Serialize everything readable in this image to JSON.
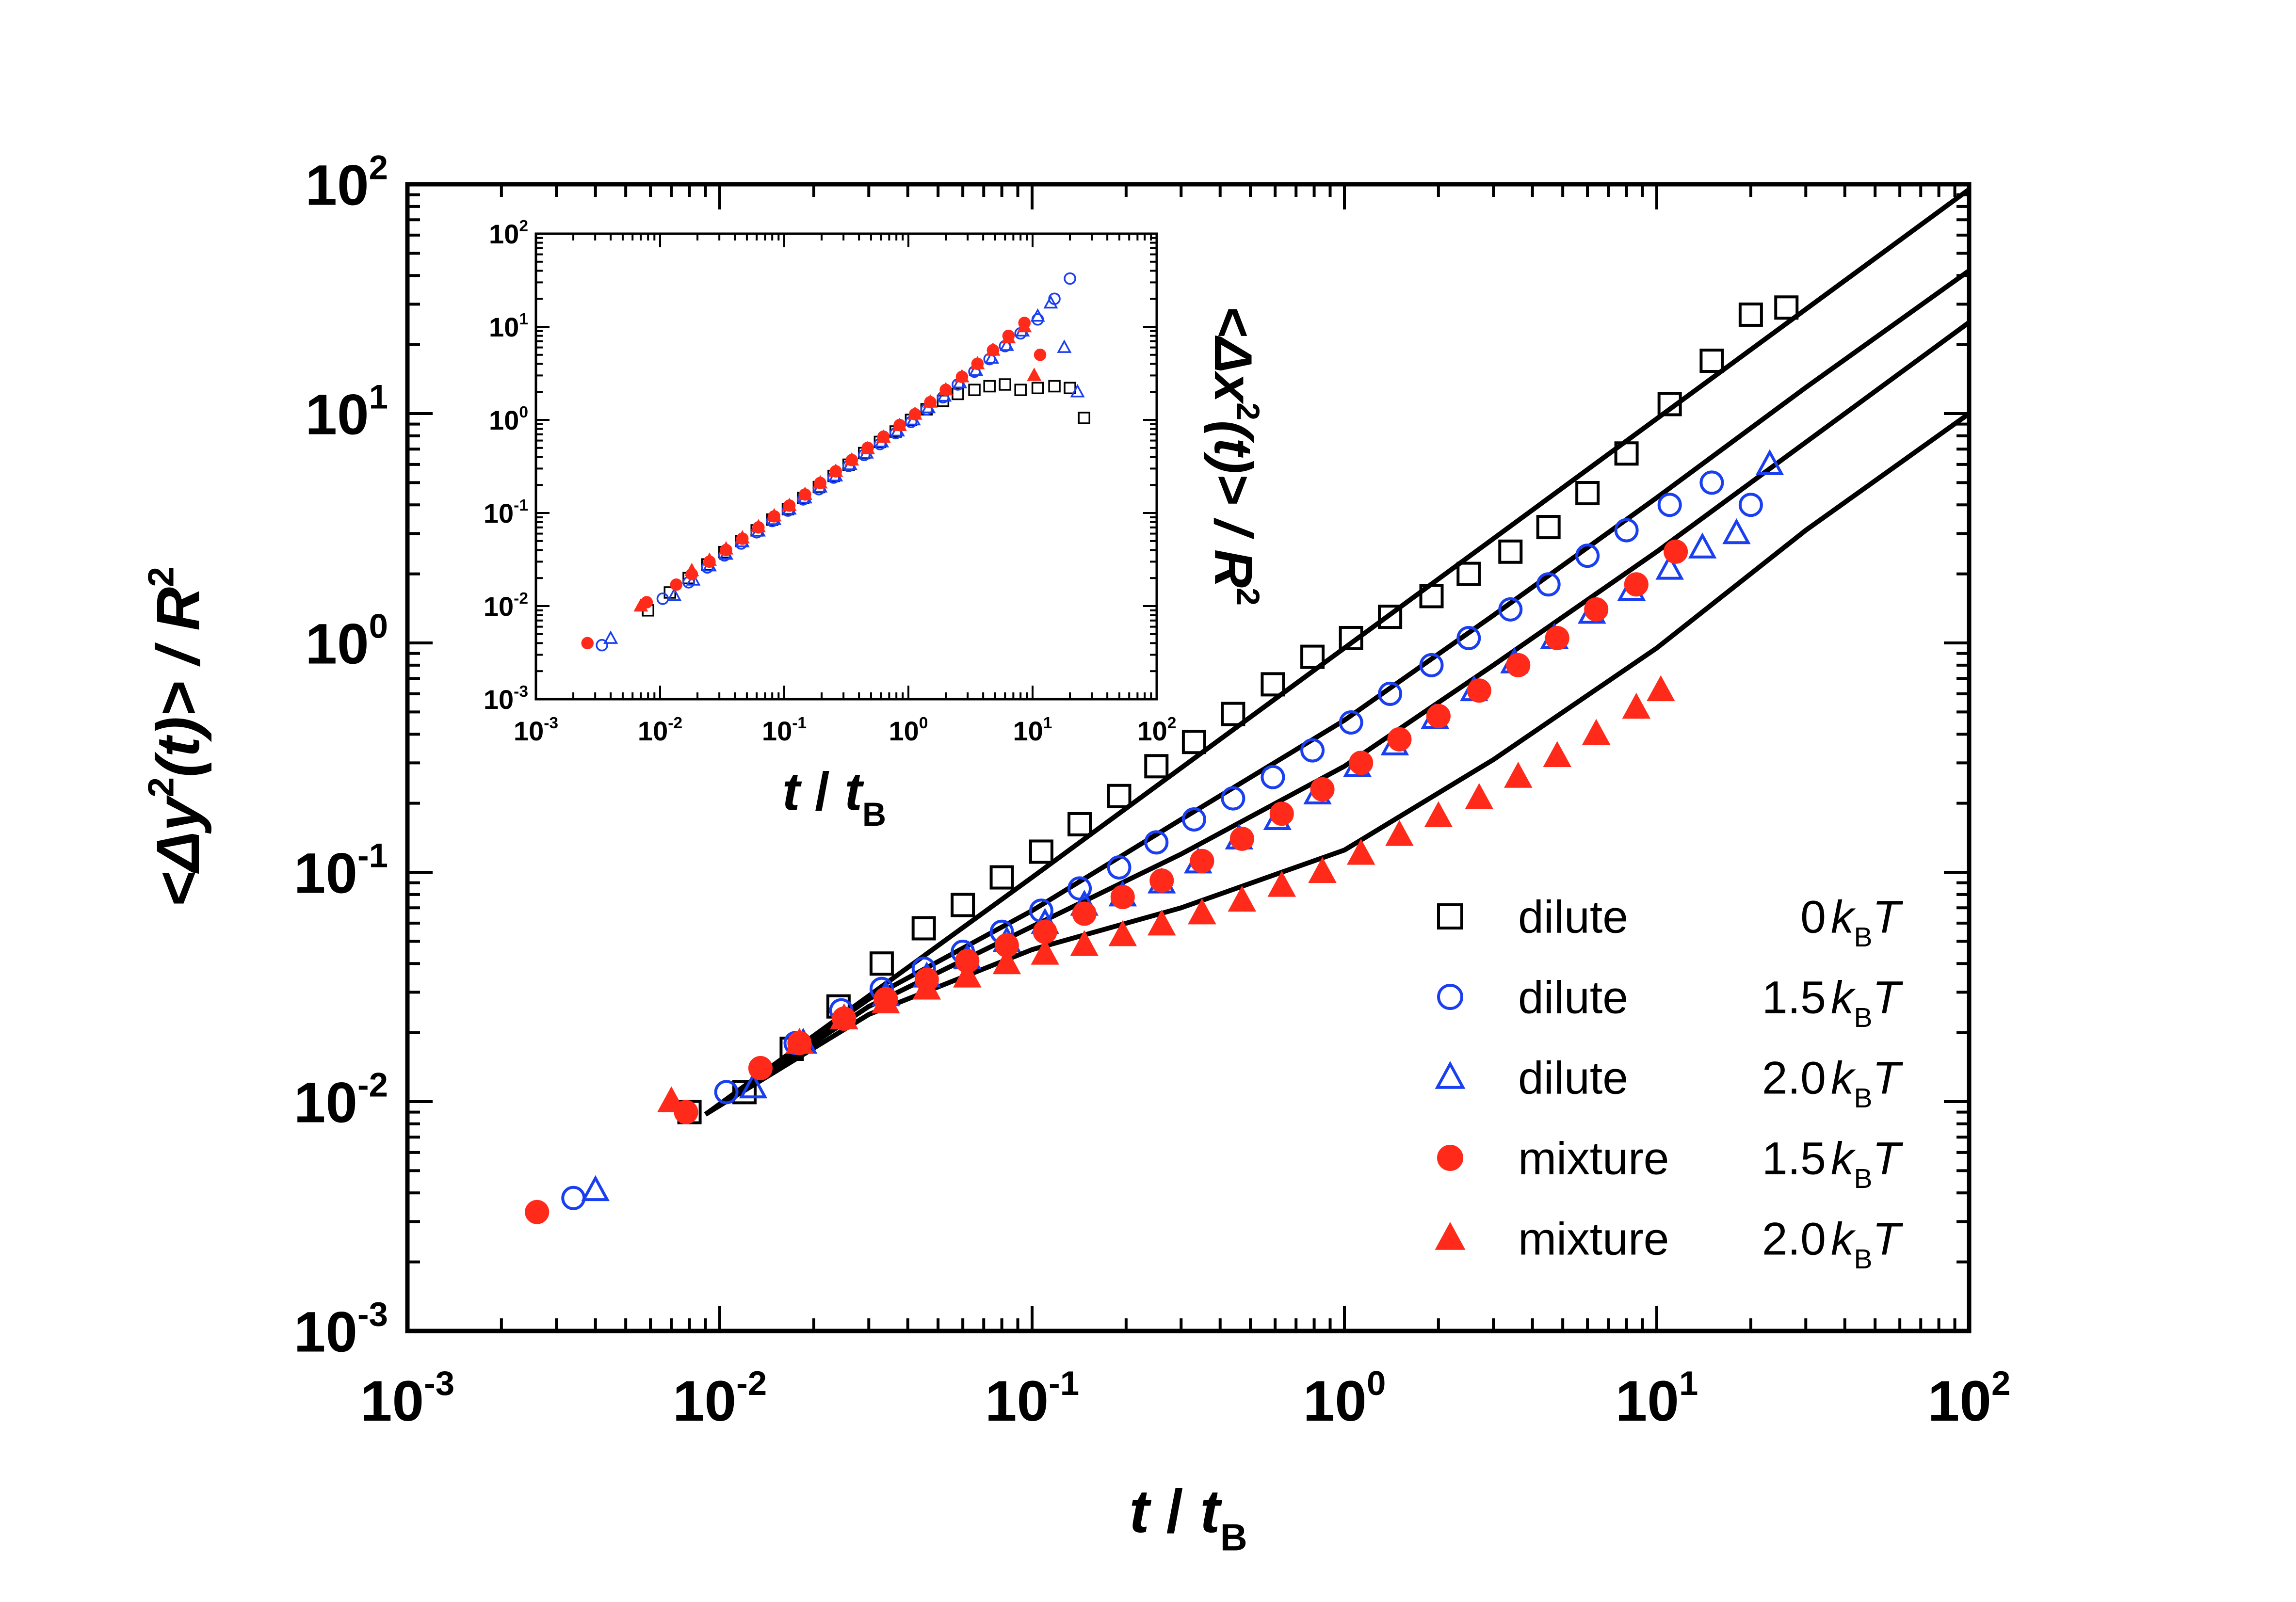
{
  "colors": {
    "black": "#000000",
    "blue": "#1a3ff0",
    "red": "#ff2a1a"
  },
  "chart_data": [
    {
      "type": "scatter",
      "role": "main",
      "xscale": "log",
      "yscale": "log",
      "xlim": [
        0.001,
        100
      ],
      "ylim": [
        0.001,
        100
      ],
      "xlabel": {
        "t": "t",
        "sep": " / ",
        "tB": "t",
        "sub": "B"
      },
      "ylabel": {
        "open": "<Δy",
        "sup": "2",
        "mid": "(t)> / R",
        "sup2": "2"
      },
      "xticks": [
        {
          "v": 0.001,
          "base": "10",
          "exp": "-3"
        },
        {
          "v": 0.01,
          "base": "10",
          "exp": "-2"
        },
        {
          "v": 0.1,
          "base": "10",
          "exp": "-1"
        },
        {
          "v": 1,
          "base": "10",
          "exp": "0"
        },
        {
          "v": 10,
          "base": "10",
          "exp": "1"
        },
        {
          "v": 100,
          "base": "10",
          "exp": "2"
        }
      ],
      "yticks": [
        {
          "v": 0.001,
          "base": "10",
          "exp": "-3"
        },
        {
          "v": 0.01,
          "base": "10",
          "exp": "-2"
        },
        {
          "v": 0.1,
          "base": "10",
          "exp": "-1"
        },
        {
          "v": 1,
          "base": "10",
          "exp": "0"
        },
        {
          "v": 10,
          "base": "10",
          "exp": "1"
        },
        {
          "v": 100,
          "base": "10",
          "exp": "2"
        }
      ],
      "legend_position": "bottom-right",
      "series": [
        {
          "name": "dilute",
          "energy": "0",
          "unit_k": "k",
          "unit_sub": "B",
          "unit_T": "T",
          "marker": "square",
          "filled": false,
          "color": "black",
          "x": [
            0.008,
            0.012,
            0.017,
            0.024,
            0.033,
            0.045,
            0.06,
            0.08,
            0.107,
            0.142,
            0.19,
            0.25,
            0.33,
            0.44,
            0.59,
            0.79,
            1.05,
            1.4,
            1.9,
            2.5,
            3.4,
            4.5,
            6.0,
            8.0,
            11.0,
            15.0,
            20.0,
            26.0
          ],
          "y": [
            0.009,
            0.011,
            0.017,
            0.026,
            0.04,
            0.057,
            0.072,
            0.095,
            0.123,
            0.162,
            0.215,
            0.29,
            0.37,
            0.49,
            0.66,
            0.87,
            1.05,
            1.3,
            1.6,
            2.0,
            2.5,
            3.2,
            4.5,
            6.7,
            11.0,
            17.0,
            27.0,
            29.0
          ]
        },
        {
          "name": "dilute",
          "energy": "1.5",
          "unit_k": "k",
          "unit_sub": "B",
          "unit_T": "T",
          "marker": "circle",
          "filled": false,
          "color": "blue",
          "x": [
            0.0034,
            0.0105,
            0.0175,
            0.0245,
            0.033,
            0.045,
            0.06,
            0.08,
            0.107,
            0.142,
            0.19,
            0.25,
            0.33,
            0.44,
            0.59,
            0.79,
            1.05,
            1.4,
            1.9,
            2.5,
            3.4,
            4.5,
            6.0,
            8.0,
            11.0,
            15.0,
            20.0
          ],
          "y": [
            0.0038,
            0.011,
            0.018,
            0.025,
            0.031,
            0.038,
            0.045,
            0.055,
            0.068,
            0.085,
            0.105,
            0.135,
            0.17,
            0.21,
            0.26,
            0.34,
            0.45,
            0.6,
            0.8,
            1.05,
            1.4,
            1.8,
            2.4,
            3.1,
            4.0,
            5.0,
            4.0
          ]
        },
        {
          "name": "dilute",
          "energy": "2.0",
          "unit_k": "k",
          "unit_sub": "B",
          "unit_T": "T",
          "marker": "triangle",
          "filled": false,
          "color": "blue",
          "x": [
            0.004,
            0.0128,
            0.0185,
            0.025,
            0.034,
            0.046,
            0.062,
            0.083,
            0.11,
            0.147,
            0.195,
            0.26,
            0.34,
            0.46,
            0.61,
            0.82,
            1.1,
            1.45,
            1.95,
            2.6,
            3.5,
            4.7,
            6.2,
            8.3,
            11.0,
            14.0,
            18.0,
            23.0
          ],
          "y": [
            0.0041,
            0.0115,
            0.018,
            0.023,
            0.029,
            0.035,
            0.042,
            0.05,
            0.06,
            0.072,
            0.079,
            0.09,
            0.11,
            0.14,
            0.17,
            0.22,
            0.29,
            0.36,
            0.47,
            0.62,
            0.82,
            1.05,
            1.35,
            1.7,
            2.1,
            2.6,
            3.0,
            6.0
          ]
        },
        {
          "name": "mixture",
          "energy": "1.5",
          "unit_k": "k",
          "unit_sub": "B",
          "unit_T": "T",
          "marker": "circle",
          "filled": true,
          "color": "red",
          "x": [
            0.0026,
            0.0078,
            0.0135,
            0.018,
            0.025,
            0.034,
            0.046,
            0.062,
            0.083,
            0.11,
            0.147,
            0.195,
            0.26,
            0.35,
            0.47,
            0.63,
            0.85,
            1.13,
            1.5,
            2.0,
            2.7,
            3.6,
            4.8,
            6.4,
            8.6,
            11.5
          ],
          "y": [
            0.0033,
            0.009,
            0.014,
            0.018,
            0.023,
            0.028,
            0.034,
            0.041,
            0.048,
            0.055,
            0.066,
            0.078,
            0.092,
            0.112,
            0.14,
            0.18,
            0.23,
            0.3,
            0.38,
            0.48,
            0.62,
            0.8,
            1.05,
            1.4,
            1.8,
            2.5
          ]
        },
        {
          "name": "mixture",
          "energy": "2.0",
          "unit_k": "k",
          "unit_sub": "B",
          "unit_T": "T",
          "marker": "triangle",
          "filled": true,
          "color": "red",
          "x": [
            0.007,
            0.018,
            0.025,
            0.034,
            0.046,
            0.062,
            0.083,
            0.11,
            0.147,
            0.195,
            0.26,
            0.35,
            0.47,
            0.63,
            0.85,
            1.13,
            1.5,
            2.0,
            2.7,
            3.6,
            4.8,
            6.4,
            8.6,
            10.3
          ],
          "y": [
            0.01,
            0.018,
            0.023,
            0.027,
            0.031,
            0.035,
            0.04,
            0.044,
            0.048,
            0.053,
            0.059,
            0.066,
            0.075,
            0.087,
            0.1,
            0.12,
            0.145,
            0.175,
            0.21,
            0.26,
            0.32,
            0.4,
            0.52,
            0.62
          ]
        }
      ],
      "fits": [
        {
          "name": "fit-dilute-0",
          "x": [
            0.009,
            0.1,
            1,
            10,
            100
          ],
          "y": [
            0.0088,
            0.095,
            0.95,
            9.5,
            95
          ]
        },
        {
          "name": "fit-dilute-1.5",
          "x": [
            0.009,
            0.03,
            0.1,
            0.3,
            1,
            3,
            10,
            30,
            100
          ],
          "y": [
            0.0088,
            0.028,
            0.068,
            0.17,
            0.46,
            1.32,
            4.3,
            13,
            42
          ]
        },
        {
          "name": "fit-dilute-2.0",
          "x": [
            0.009,
            0.03,
            0.1,
            0.3,
            1,
            3,
            10,
            30,
            100
          ],
          "y": [
            0.0088,
            0.026,
            0.058,
            0.12,
            0.29,
            0.8,
            2.5,
            7.5,
            25
          ]
        },
        {
          "name": "fit-mixture-2.0",
          "x": [
            0.009,
            0.03,
            0.1,
            0.3,
            1,
            3,
            10,
            30,
            100
          ],
          "y": [
            0.0088,
            0.024,
            0.046,
            0.07,
            0.125,
            0.31,
            0.95,
            3.1,
            10
          ]
        }
      ]
    },
    {
      "type": "scatter",
      "role": "inset",
      "xscale": "log",
      "yscale": "log",
      "xlim": [
        0.001,
        100
      ],
      "ylim": [
        0.001,
        100
      ],
      "xlabel": {
        "t": "t",
        "sep": " / ",
        "tB": "t",
        "sub": "B"
      },
      "ylabel": {
        "open": "<Δx",
        "sup": "2",
        "mid": "(t)> / R",
        "sup2": "2"
      },
      "xticks": [
        {
          "v": 0.001,
          "base": "10",
          "exp": "-3"
        },
        {
          "v": 0.01,
          "base": "10",
          "exp": "-2"
        },
        {
          "v": 0.1,
          "base": "10",
          "exp": "-1"
        },
        {
          "v": 1,
          "base": "10",
          "exp": "0"
        },
        {
          "v": 10,
          "base": "10",
          "exp": "1"
        },
        {
          "v": 100,
          "base": "10",
          "exp": "2"
        }
      ],
      "yticks": [
        {
          "v": 0.001,
          "base": "10",
          "exp": "-3"
        },
        {
          "v": 0.01,
          "base": "10",
          "exp": "-2"
        },
        {
          "v": 0.1,
          "base": "10",
          "exp": "-1"
        },
        {
          "v": 1,
          "base": "10",
          "exp": "0"
        },
        {
          "v": 10,
          "base": "10",
          "exp": "1"
        },
        {
          "v": 100,
          "base": "10",
          "exp": "2"
        }
      ],
      "series": [
        {
          "name": "dilute 0 kBT",
          "marker": "square",
          "filled": false,
          "color": "black",
          "x": [
            0.008,
            0.012,
            0.017,
            0.024,
            0.033,
            0.045,
            0.06,
            0.08,
            0.107,
            0.142,
            0.19,
            0.25,
            0.33,
            0.44,
            0.59,
            0.79,
            1.05,
            1.4,
            1.9,
            2.5,
            3.4,
            4.5,
            6.0,
            8.0,
            11.0,
            15.0,
            20.0,
            26.0
          ],
          "y": [
            0.009,
            0.014,
            0.02,
            0.028,
            0.038,
            0.05,
            0.065,
            0.085,
            0.11,
            0.145,
            0.19,
            0.25,
            0.33,
            0.44,
            0.58,
            0.75,
            1.0,
            1.3,
            1.6,
            1.9,
            2.1,
            2.3,
            2.4,
            2.1,
            2.2,
            2.3,
            2.2,
            1.05
          ]
        },
        {
          "name": "dilute 1.5 kBT",
          "marker": "circle",
          "filled": false,
          "color": "blue",
          "x": [
            0.0034,
            0.0105,
            0.017,
            0.024,
            0.033,
            0.045,
            0.06,
            0.08,
            0.107,
            0.142,
            0.19,
            0.25,
            0.33,
            0.44,
            0.59,
            0.79,
            1.05,
            1.4,
            1.9,
            2.5,
            3.4,
            4.5,
            6.0,
            8.0,
            11.0,
            15.0,
            20.0
          ],
          "y": [
            0.0038,
            0.012,
            0.018,
            0.026,
            0.035,
            0.047,
            0.062,
            0.082,
            0.106,
            0.14,
            0.18,
            0.24,
            0.32,
            0.42,
            0.55,
            0.72,
            0.95,
            1.3,
            1.75,
            2.4,
            3.3,
            4.5,
            6.2,
            8.5,
            12.0,
            20.0,
            33.0
          ]
        },
        {
          "name": "dilute 2.0 kBT",
          "marker": "triangle",
          "filled": false,
          "color": "blue",
          "x": [
            0.004,
            0.013,
            0.0185,
            0.025,
            0.034,
            0.046,
            0.062,
            0.083,
            0.11,
            0.147,
            0.195,
            0.26,
            0.34,
            0.46,
            0.61,
            0.82,
            1.1,
            1.45,
            1.95,
            2.6,
            3.5,
            4.7,
            6.2,
            8.3,
            11.0,
            14.0,
            18.0,
            23.0
          ],
          "y": [
            0.0045,
            0.013,
            0.019,
            0.027,
            0.036,
            0.049,
            0.064,
            0.085,
            0.11,
            0.145,
            0.19,
            0.25,
            0.33,
            0.44,
            0.58,
            0.76,
            1.0,
            1.35,
            1.8,
            2.5,
            3.4,
            4.6,
            6.3,
            9.0,
            13.0,
            18.0,
            6.0,
            2.0
          ]
        },
        {
          "name": "mixture 1.5 kBT",
          "marker": "circle",
          "filled": true,
          "color": "red",
          "x": [
            0.0026,
            0.0078,
            0.0135,
            0.018,
            0.025,
            0.034,
            0.046,
            0.062,
            0.083,
            0.11,
            0.147,
            0.195,
            0.26,
            0.35,
            0.47,
            0.63,
            0.85,
            1.13,
            1.5,
            2.0,
            2.7,
            3.6,
            4.8,
            6.4,
            8.6,
            11.5
          ],
          "y": [
            0.004,
            0.011,
            0.017,
            0.022,
            0.03,
            0.04,
            0.053,
            0.07,
            0.092,
            0.12,
            0.158,
            0.21,
            0.28,
            0.37,
            0.5,
            0.66,
            0.88,
            1.15,
            1.55,
            2.1,
            2.9,
            4.0,
            5.6,
            8.0,
            11.0,
            5.0
          ]
        },
        {
          "name": "mixture 2.0 kBT",
          "marker": "triangle",
          "filled": true,
          "color": "red",
          "x": [
            0.007,
            0.018,
            0.025,
            0.034,
            0.046,
            0.062,
            0.083,
            0.11,
            0.147,
            0.195,
            0.26,
            0.35,
            0.47,
            0.63,
            0.85,
            1.13,
            1.5,
            2.0,
            2.7,
            3.6,
            4.8,
            6.4,
            8.6,
            10.3
          ],
          "y": [
            0.01,
            0.024,
            0.031,
            0.041,
            0.054,
            0.071,
            0.093,
            0.12,
            0.158,
            0.21,
            0.28,
            0.37,
            0.49,
            0.65,
            0.87,
            1.15,
            1.55,
            2.1,
            2.9,
            4.0,
            5.6,
            7.6,
            10.0,
            3.0
          ]
        }
      ]
    }
  ]
}
